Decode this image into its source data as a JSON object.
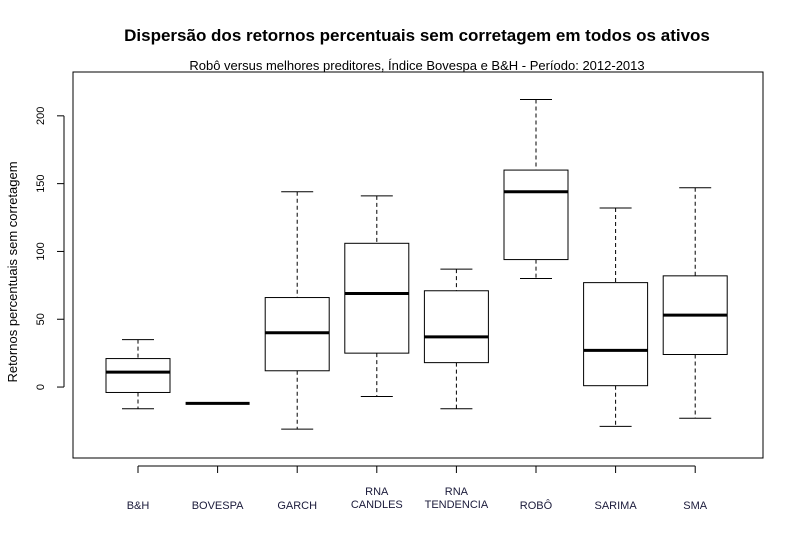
{
  "chart_data": {
    "type": "boxplot",
    "title": "Dispersão dos retornos percentuais sem corretagem em todos os ativos",
    "subtitle": "Robô versus melhores preditores, Índice Bovespa e B&H - Período: 2012-2013",
    "xlabel": "",
    "ylabel": "Retornos percentuais sem corretagem",
    "ylim": [
      -42,
      222
    ],
    "yticks": [
      0,
      50,
      100,
      150,
      200
    ],
    "grid": false,
    "categories": [
      [
        "B&H"
      ],
      [
        "BOVESPA"
      ],
      [
        "GARCH"
      ],
      [
        "RNA",
        "CANDLES"
      ],
      [
        "RNA",
        "TENDENCIA"
      ],
      [
        "ROBÔ"
      ],
      [
        "SARIMA"
      ],
      [
        "SMA"
      ]
    ],
    "boxes": [
      {
        "min": -16,
        "q1": -4,
        "median": 11,
        "q3": 21,
        "max": 35
      },
      {
        "min": -12,
        "q1": -12,
        "median": -12,
        "q3": -12,
        "max": -12
      },
      {
        "min": -31,
        "q1": 12,
        "median": 40,
        "q3": 66,
        "max": 144
      },
      {
        "min": -7,
        "q1": 25,
        "median": 69,
        "q3": 106,
        "max": 141
      },
      {
        "min": -16,
        "q1": 18,
        "median": 37,
        "q3": 71,
        "max": 87
      },
      {
        "min": 80,
        "q1": 94,
        "median": 144,
        "q3": 160,
        "max": 212
      },
      {
        "min": -29,
        "q1": 1,
        "median": 27,
        "q3": 77,
        "max": 132
      },
      {
        "min": -23,
        "q1": 24,
        "median": 53,
        "q3": 82,
        "max": 147
      }
    ]
  }
}
